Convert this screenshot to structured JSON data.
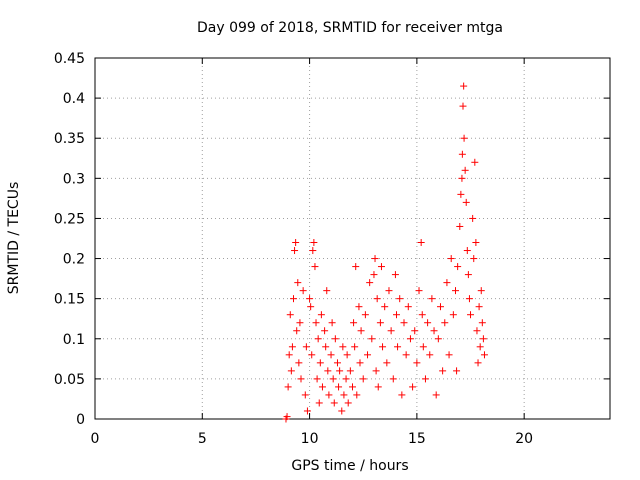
{
  "chart_data": {
    "type": "scatter",
    "title": "Day 099 of 2018, SRMTID for receiver mtga",
    "xlabel": "GPS time / hours",
    "ylabel": "SRMTID / TECUs",
    "xlim": [
      0,
      24
    ],
    "ylim": [
      0,
      0.45
    ],
    "xticks": [
      0,
      5,
      10,
      15,
      20
    ],
    "xtick_labels": [
      "0",
      "5",
      "10",
      "15",
      "20"
    ],
    "yticks": [
      0,
      0.05,
      0.1,
      0.15,
      0.2,
      0.25,
      0.3,
      0.35,
      0.4,
      0.45
    ],
    "ytick_labels": [
      "0",
      "0.05",
      "0.1",
      "0.15",
      "0.2",
      "0.25",
      "0.3",
      "0.35",
      "0.4",
      "0.45"
    ],
    "grid": true,
    "marker": "+",
    "color": "#ff0000",
    "series": [
      {
        "name": "SRMTID",
        "points": [
          [
            8.9,
            0.0
          ],
          [
            8.95,
            0.003
          ],
          [
            9.0,
            0.04
          ],
          [
            9.05,
            0.08
          ],
          [
            9.1,
            0.13
          ],
          [
            9.15,
            0.06
          ],
          [
            9.2,
            0.09
          ],
          [
            9.25,
            0.15
          ],
          [
            9.3,
            0.21
          ],
          [
            9.35,
            0.22
          ],
          [
            9.4,
            0.11
          ],
          [
            9.45,
            0.17
          ],
          [
            9.5,
            0.07
          ],
          [
            9.55,
            0.12
          ],
          [
            9.6,
            0.05
          ],
          [
            9.7,
            0.16
          ],
          [
            9.8,
            0.03
          ],
          [
            9.85,
            0.09
          ],
          [
            9.9,
            0.01
          ],
          [
            10.0,
            0.15
          ],
          [
            10.05,
            0.14
          ],
          [
            10.1,
            0.08
          ],
          [
            10.15,
            0.21
          ],
          [
            10.2,
            0.22
          ],
          [
            10.25,
            0.19
          ],
          [
            10.3,
            0.12
          ],
          [
            10.35,
            0.05
          ],
          [
            10.4,
            0.1
          ],
          [
            10.45,
            0.02
          ],
          [
            10.5,
            0.07
          ],
          [
            10.55,
            0.13
          ],
          [
            10.6,
            0.04
          ],
          [
            10.7,
            0.11
          ],
          [
            10.75,
            0.09
          ],
          [
            10.8,
            0.16
          ],
          [
            10.85,
            0.06
          ],
          [
            10.9,
            0.03
          ],
          [
            11.0,
            0.08
          ],
          [
            11.05,
            0.12
          ],
          [
            11.1,
            0.05
          ],
          [
            11.15,
            0.02
          ],
          [
            11.2,
            0.1
          ],
          [
            11.3,
            0.07
          ],
          [
            11.35,
            0.04
          ],
          [
            11.4,
            0.06
          ],
          [
            11.5,
            0.01
          ],
          [
            11.55,
            0.09
          ],
          [
            11.6,
            0.03
          ],
          [
            11.7,
            0.05
          ],
          [
            11.75,
            0.08
          ],
          [
            11.8,
            0.02
          ],
          [
            11.9,
            0.06
          ],
          [
            12.0,
            0.04
          ],
          [
            12.05,
            0.12
          ],
          [
            12.1,
            0.09
          ],
          [
            12.15,
            0.19
          ],
          [
            12.2,
            0.03
          ],
          [
            12.3,
            0.14
          ],
          [
            12.35,
            0.07
          ],
          [
            12.4,
            0.11
          ],
          [
            12.5,
            0.05
          ],
          [
            12.6,
            0.13
          ],
          [
            12.7,
            0.08
          ],
          [
            12.8,
            0.17
          ],
          [
            12.9,
            0.1
          ],
          [
            13.0,
            0.18
          ],
          [
            13.05,
            0.2
          ],
          [
            13.1,
            0.06
          ],
          [
            13.15,
            0.15
          ],
          [
            13.2,
            0.04
          ],
          [
            13.3,
            0.12
          ],
          [
            13.35,
            0.19
          ],
          [
            13.4,
            0.09
          ],
          [
            13.5,
            0.14
          ],
          [
            13.6,
            0.07
          ],
          [
            13.7,
            0.16
          ],
          [
            13.8,
            0.11
          ],
          [
            13.9,
            0.05
          ],
          [
            14.0,
            0.18
          ],
          [
            14.05,
            0.13
          ],
          [
            14.1,
            0.09
          ],
          [
            14.2,
            0.15
          ],
          [
            14.3,
            0.03
          ],
          [
            14.4,
            0.12
          ],
          [
            14.5,
            0.08
          ],
          [
            14.6,
            0.14
          ],
          [
            14.7,
            0.1
          ],
          [
            14.8,
            0.04
          ],
          [
            14.9,
            0.11
          ],
          [
            15.0,
            0.07
          ],
          [
            15.1,
            0.16
          ],
          [
            15.2,
            0.22
          ],
          [
            15.25,
            0.13
          ],
          [
            15.3,
            0.09
          ],
          [
            15.4,
            0.05
          ],
          [
            15.5,
            0.12
          ],
          [
            15.6,
            0.08
          ],
          [
            15.7,
            0.15
          ],
          [
            15.8,
            0.11
          ],
          [
            15.9,
            0.03
          ],
          [
            16.0,
            0.1
          ],
          [
            16.1,
            0.14
          ],
          [
            16.2,
            0.06
          ],
          [
            16.3,
            0.12
          ],
          [
            16.4,
            0.17
          ],
          [
            16.5,
            0.08
          ],
          [
            16.6,
            0.2
          ],
          [
            16.7,
            0.13
          ],
          [
            16.8,
            0.16
          ],
          [
            16.85,
            0.06
          ],
          [
            16.9,
            0.19
          ],
          [
            17.0,
            0.24
          ],
          [
            17.05,
            0.28
          ],
          [
            17.1,
            0.3
          ],
          [
            17.12,
            0.33
          ],
          [
            17.15,
            0.39
          ],
          [
            17.18,
            0.415
          ],
          [
            17.2,
            0.35
          ],
          [
            17.25,
            0.31
          ],
          [
            17.3,
            0.27
          ],
          [
            17.35,
            0.21
          ],
          [
            17.4,
            0.18
          ],
          [
            17.45,
            0.15
          ],
          [
            17.5,
            0.13
          ],
          [
            17.6,
            0.25
          ],
          [
            17.65,
            0.2
          ],
          [
            17.7,
            0.32
          ],
          [
            17.75,
            0.22
          ],
          [
            17.8,
            0.11
          ],
          [
            17.85,
            0.07
          ],
          [
            17.9,
            0.14
          ],
          [
            17.95,
            0.09
          ],
          [
            18.0,
            0.16
          ],
          [
            18.05,
            0.12
          ],
          [
            18.1,
            0.1
          ],
          [
            18.15,
            0.08
          ]
        ]
      }
    ]
  }
}
